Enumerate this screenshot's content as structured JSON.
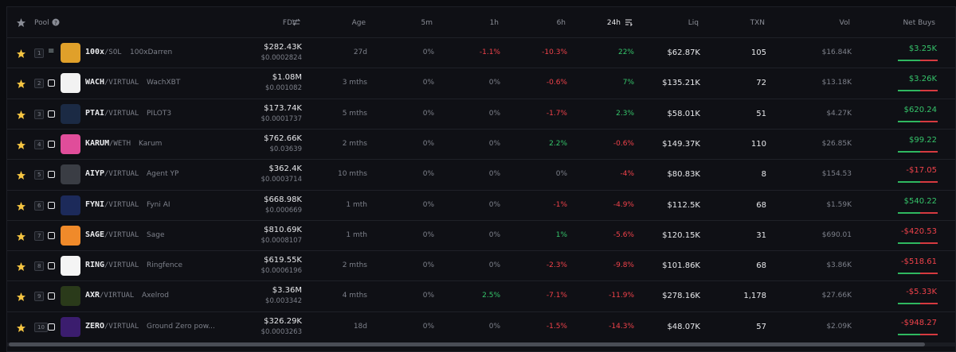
{
  "header": {
    "pool": "Pool",
    "fdv": "FDV",
    "age": "Age",
    "m5": "5m",
    "h1": "1h",
    "h6": "6h",
    "h24": "24h",
    "liq": "Liq",
    "txn": "TXN",
    "vol": "Vol",
    "net_buys": "Net Buys"
  },
  "rows": [
    {
      "rank": "1",
      "symbol": "100x",
      "quote": "/SOL",
      "name": "100xDarren",
      "fdv": "$282.43K",
      "price": "$0.0002824",
      "age": "27d",
      "m5": "0%",
      "h1": "-1.1%",
      "h6": "-10.3%",
      "h24": "22%",
      "liq": "$62.87K",
      "txn": "105",
      "vol": "$16.84K",
      "net_buys": "$3.25K"
    },
    {
      "rank": "2",
      "symbol": "WACH",
      "quote": "/VIRTUAL",
      "name": "WachXBT",
      "fdv": "$1.08M",
      "price": "$0.001082",
      "age": "3 mths",
      "m5": "0%",
      "h1": "0%",
      "h6": "-0.6%",
      "h24": "7%",
      "liq": "$135.21K",
      "txn": "72",
      "vol": "$13.18K",
      "net_buys": "$3.26K"
    },
    {
      "rank": "3",
      "symbol": "PTAI",
      "quote": "/VIRTUAL",
      "name": "PILOT3",
      "fdv": "$173.74K",
      "price": "$0.0001737",
      "age": "5 mths",
      "m5": "0%",
      "h1": "0%",
      "h6": "-1.7%",
      "h24": "2.3%",
      "liq": "$58.01K",
      "txn": "51",
      "vol": "$4.27K",
      "net_buys": "$620.24"
    },
    {
      "rank": "4",
      "symbol": "KARUM",
      "quote": "/WETH",
      "name": "Karum",
      "fdv": "$762.66K",
      "price": "$0.03639",
      "age": "2 mths",
      "m5": "0%",
      "h1": "0%",
      "h6": "2.2%",
      "h24": "-0.6%",
      "liq": "$149.37K",
      "txn": "110",
      "vol": "$26.85K",
      "net_buys": "$99.22"
    },
    {
      "rank": "5",
      "symbol": "AIYP",
      "quote": "/VIRTUAL",
      "name": "Agent YP",
      "fdv": "$362.4K",
      "price": "$0.0003714",
      "age": "10 mths",
      "m5": "0%",
      "h1": "0%",
      "h6": "0%",
      "h24": "-4%",
      "liq": "$80.83K",
      "txn": "8",
      "vol": "$154.53",
      "net_buys": "-$17.05"
    },
    {
      "rank": "6",
      "symbol": "FYNI",
      "quote": "/VIRTUAL",
      "name": "Fyni AI",
      "fdv": "$668.98K",
      "price": "$0.000669",
      "age": "1 mth",
      "m5": "0%",
      "h1": "0%",
      "h6": "-1%",
      "h24": "-4.9%",
      "liq": "$112.5K",
      "txn": "68",
      "vol": "$1.59K",
      "net_buys": "$540.22"
    },
    {
      "rank": "7",
      "symbol": "SAGE",
      "quote": "/VIRTUAL",
      "name": "Sage",
      "fdv": "$810.69K",
      "price": "$0.0008107",
      "age": "1 mth",
      "m5": "0%",
      "h1": "0%",
      "h6": "1%",
      "h24": "-5.6%",
      "liq": "$120.15K",
      "txn": "31",
      "vol": "$690.01",
      "net_buys": "-$420.53"
    },
    {
      "rank": "8",
      "symbol": "RING",
      "quote": "/VIRTUAL",
      "name": "Ringfence",
      "fdv": "$619.55K",
      "price": "$0.0006196",
      "age": "2 mths",
      "m5": "0%",
      "h1": "0%",
      "h6": "-2.3%",
      "h24": "-9.8%",
      "liq": "$101.86K",
      "txn": "68",
      "vol": "$3.86K",
      "net_buys": "-$518.61"
    },
    {
      "rank": "9",
      "symbol": "AXR",
      "quote": "/VIRTUAL",
      "name": "Axelrod",
      "fdv": "$3.36M",
      "price": "$0.003342",
      "age": "4 mths",
      "m5": "0%",
      "h1": "2.5%",
      "h6": "-7.1%",
      "h24": "-11.9%",
      "liq": "$278.16K",
      "txn": "1,178",
      "vol": "$27.66K",
      "net_buys": "-$5.33K"
    },
    {
      "rank": "10",
      "symbol": "ZERO",
      "quote": "/VIRTUAL",
      "name": "Ground Zero pow...",
      "fdv": "$326.29K",
      "price": "$0.0003263",
      "age": "18d",
      "m5": "0%",
      "h1": "0%",
      "h6": "-1.5%",
      "h24": "-14.3%",
      "liq": "$48.07K",
      "txn": "57",
      "vol": "$2.09K",
      "net_buys": "-$948.27"
    }
  ]
}
